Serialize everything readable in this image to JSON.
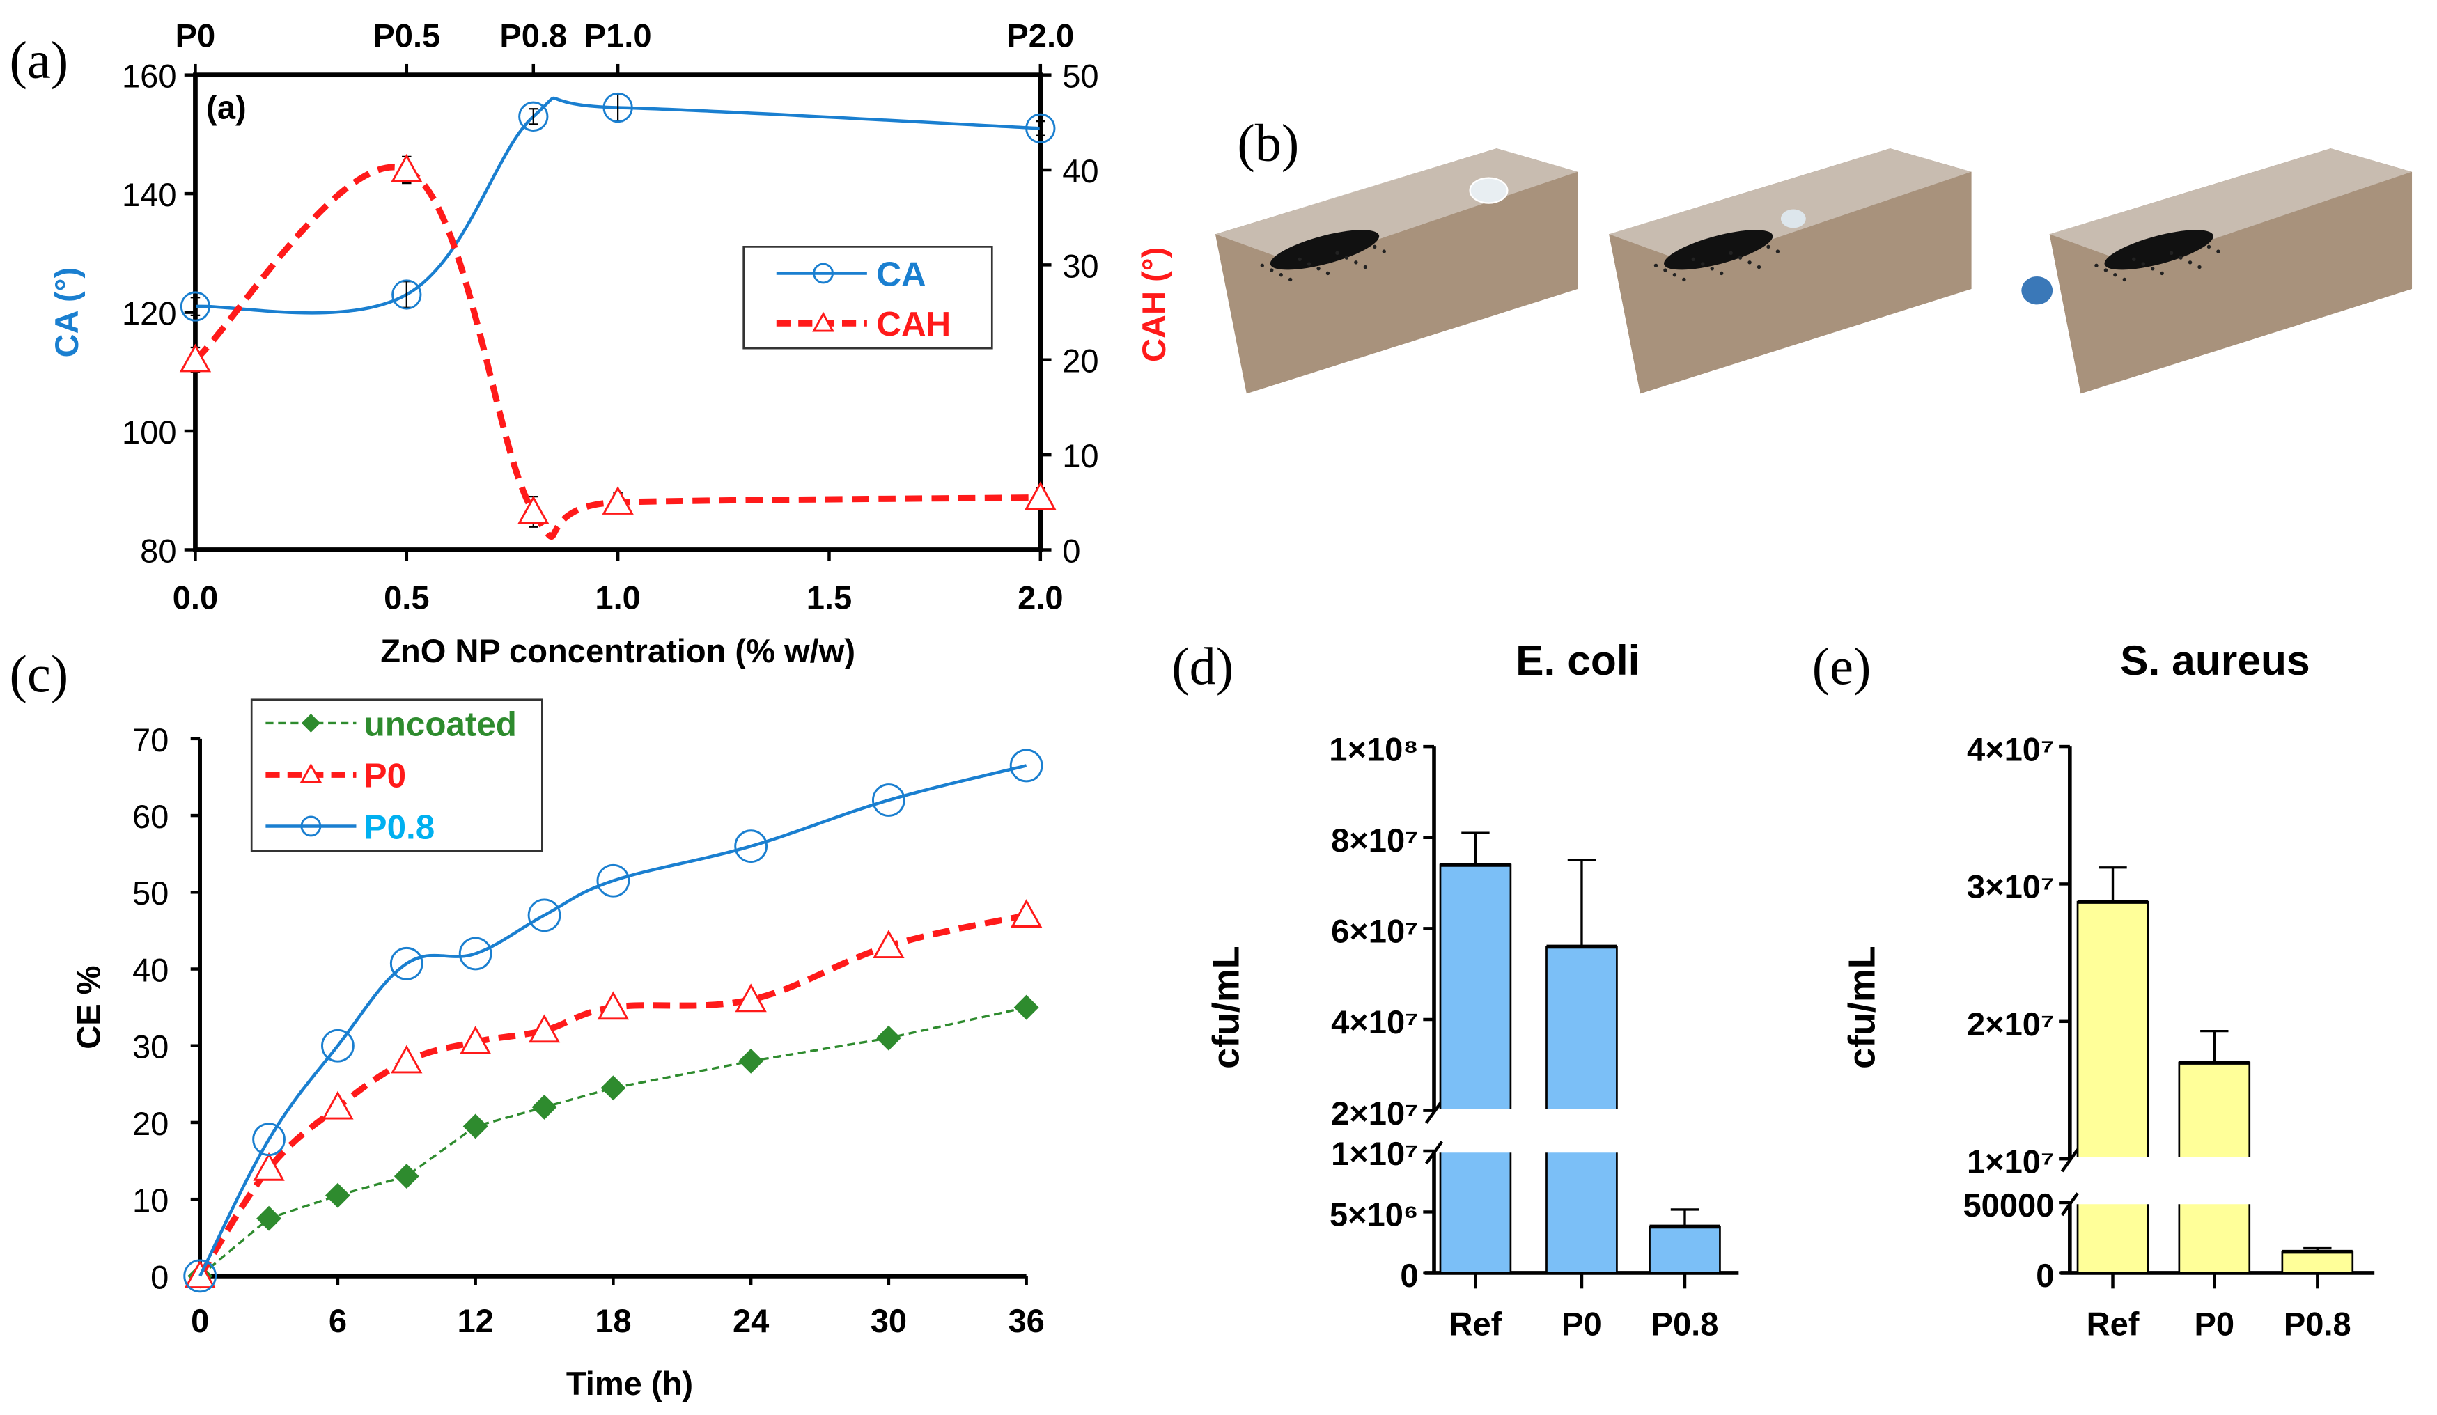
{
  "panel_labels": {
    "a": "(a)",
    "b": "(b)",
    "c": "(c)",
    "d": "(d)",
    "e": "(e)",
    "a_inner": "(a)"
  },
  "colors": {
    "ca": "#1a7fd0",
    "cah": "#ff1a1a",
    "uncoated": "#2e8b2e",
    "p08_text": "#00b0f0",
    "ecoli_bar": "#7bbff7",
    "saureus_bar": "#ffff99",
    "brick": "#a08a74"
  },
  "chart_data": [
    {
      "id": "a",
      "type": "line",
      "xlabel": "ZnO NP concentration (% w/w)",
      "ylabel": "CA (°)",
      "y2label": "CAH (°)",
      "xlim": [
        0,
        2
      ],
      "ylim": [
        80,
        160
      ],
      "y2lim": [
        0,
        50
      ],
      "xticks": [
        0,
        0.5,
        1.0,
        1.5,
        2.0
      ],
      "xtick_labels": [
        "0.0",
        "0.5",
        "1.0",
        "1.5",
        "2.0"
      ],
      "yticks": [
        80,
        100,
        120,
        140,
        160
      ],
      "y2ticks": [
        0,
        10,
        20,
        30,
        40,
        50
      ],
      "top_ticks": [
        0,
        0.5,
        0.8,
        1.0,
        2.0
      ],
      "top_labels": [
        "P0",
        "P0.5",
        "P0.8",
        "P1.0",
        "P2.0"
      ],
      "legend": "center-right",
      "series": [
        {
          "name": "CA",
          "axis": "left",
          "x": [
            0,
            0.5,
            0.8,
            1.0,
            2.0
          ],
          "values": [
            121,
            123,
            153,
            154.5,
            151
          ],
          "err": [
            1.5,
            2.2,
            1.3,
            2.3,
            1.2
          ]
        },
        {
          "name": "CAH",
          "axis": "right",
          "x": [
            0,
            0.5,
            0.8,
            1.0,
            2.0
          ],
          "values": [
            20,
            40,
            4,
            5,
            5.5
          ],
          "err": [
            1.3,
            1.4,
            1.6,
            1.0,
            1.0
          ]
        }
      ]
    },
    {
      "id": "c",
      "type": "line",
      "xlabel": "Time (h)",
      "ylabel": "CE %",
      "xlim": [
        0,
        36
      ],
      "ylim": [
        0,
        70
      ],
      "xticks": [
        0,
        6,
        12,
        18,
        24,
        30,
        36
      ],
      "yticks": [
        0,
        10,
        20,
        30,
        40,
        50,
        60,
        70
      ],
      "legend": "top-left",
      "x": [
        0,
        3,
        6,
        9,
        12,
        15,
        18,
        24,
        30,
        36
      ],
      "series": [
        {
          "name": "uncoated",
          "values": [
            0,
            7.5,
            10.5,
            13,
            19.5,
            22,
            24.5,
            28,
            31,
            35
          ]
        },
        {
          "name": "P0",
          "values": [
            0,
            14,
            22,
            28,
            30.5,
            32,
            35,
            36,
            43,
            47
          ]
        },
        {
          "name": "P0.8",
          "values": [
            0,
            17.8,
            30,
            40.7,
            42,
            47,
            51.5,
            56,
            62,
            66.5
          ]
        }
      ]
    },
    {
      "id": "d",
      "type": "bar",
      "title": "E. coli",
      "ylabel": "cfu/mL",
      "categories": [
        "Ref",
        "P0",
        "P0.8"
      ],
      "values": [
        74000000,
        56000000,
        3800000
      ],
      "err_top": [
        81000000,
        75000000,
        5200000
      ],
      "broken_axis": {
        "lower": [
          0,
          10000000
        ],
        "upper": [
          20000000,
          100000000
        ]
      },
      "ytick_labels": [
        "1×10⁸",
        "8×10⁷",
        "6×10⁷",
        "4×10⁷",
        "2×10⁷",
        "1×10⁷",
        "5×10⁶",
        "0"
      ],
      "yticks": [
        100000000,
        80000000,
        60000000,
        40000000,
        20000000,
        10000000,
        5000000,
        0
      ]
    },
    {
      "id": "e",
      "type": "bar",
      "title": "S. aureus",
      "ylabel": "cfu/mL",
      "categories": [
        "Ref",
        "P0",
        "P0.8"
      ],
      "values": [
        28700000,
        17000000,
        15000
      ],
      "err_top": [
        31200000,
        19300000,
        17500
      ],
      "broken_axis": {
        "lower": [
          0,
          50000
        ],
        "upper": [
          10000000,
          40000000
        ]
      },
      "ytick_labels": [
        "4×10⁷",
        "3×10⁷",
        "2×10⁷",
        "1×10⁷",
        "50000",
        "0"
      ],
      "yticks": [
        40000000,
        30000000,
        20000000,
        10000000,
        50000,
        0
      ]
    }
  ]
}
